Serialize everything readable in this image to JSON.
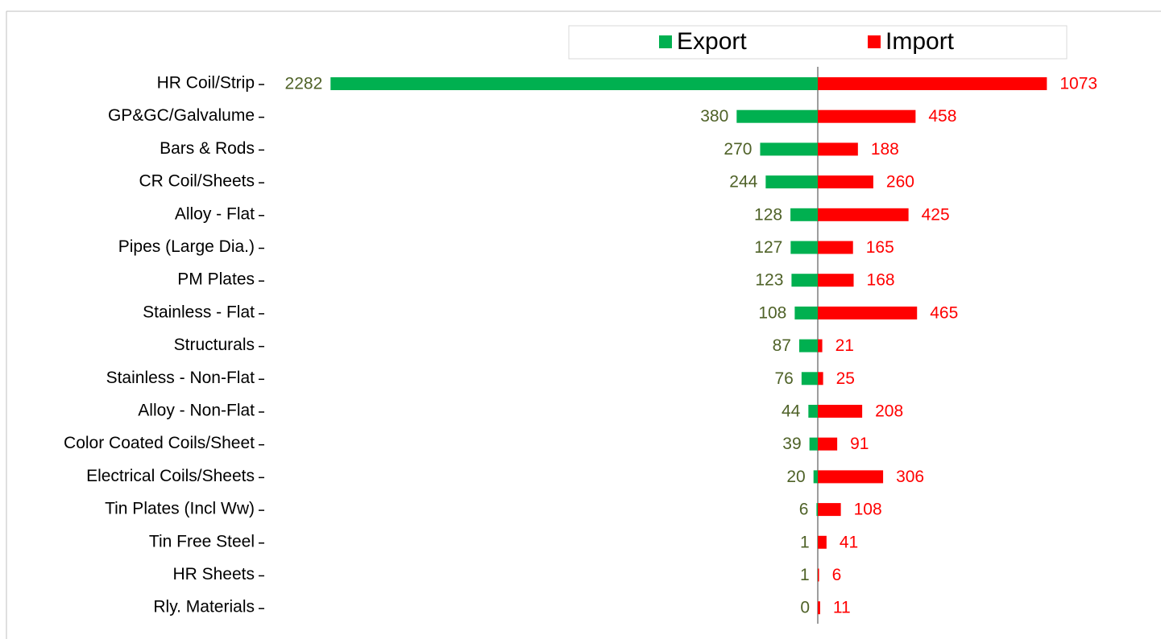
{
  "chart_data": {
    "type": "bar",
    "orientation": "horizontal",
    "diverging": true,
    "categories": [
      "HR Coil/Strip",
      "GP&GC/Galvalume",
      "Bars & Rods",
      "CR Coil/Sheets",
      "Alloy - Flat",
      "Pipes (Large Dia.)",
      "PM Plates",
      "Stainless - Flat",
      "Structurals",
      "Stainless - Non-Flat",
      "Alloy - Non-Flat",
      "Color Coated Coils/Sheet",
      "Electrical Coils/Sheets",
      "Tin Plates (Incl Ww)",
      "Tin Free Steel",
      "HR Sheets",
      "Rly. Materials"
    ],
    "series": [
      {
        "name": "Export",
        "color": "#00b050",
        "label_color": "#4f6228",
        "values": [
          2282,
          380,
          270,
          244,
          128,
          127,
          123,
          108,
          87,
          76,
          44,
          39,
          20,
          6,
          1,
          1,
          0
        ]
      },
      {
        "name": "Import",
        "color": "#ff0000",
        "label_color": "#ff0000",
        "values": [
          1073,
          458,
          188,
          260,
          425,
          165,
          168,
          465,
          21,
          25,
          208,
          91,
          306,
          108,
          41,
          6,
          11
        ]
      }
    ],
    "legend": "top"
  }
}
